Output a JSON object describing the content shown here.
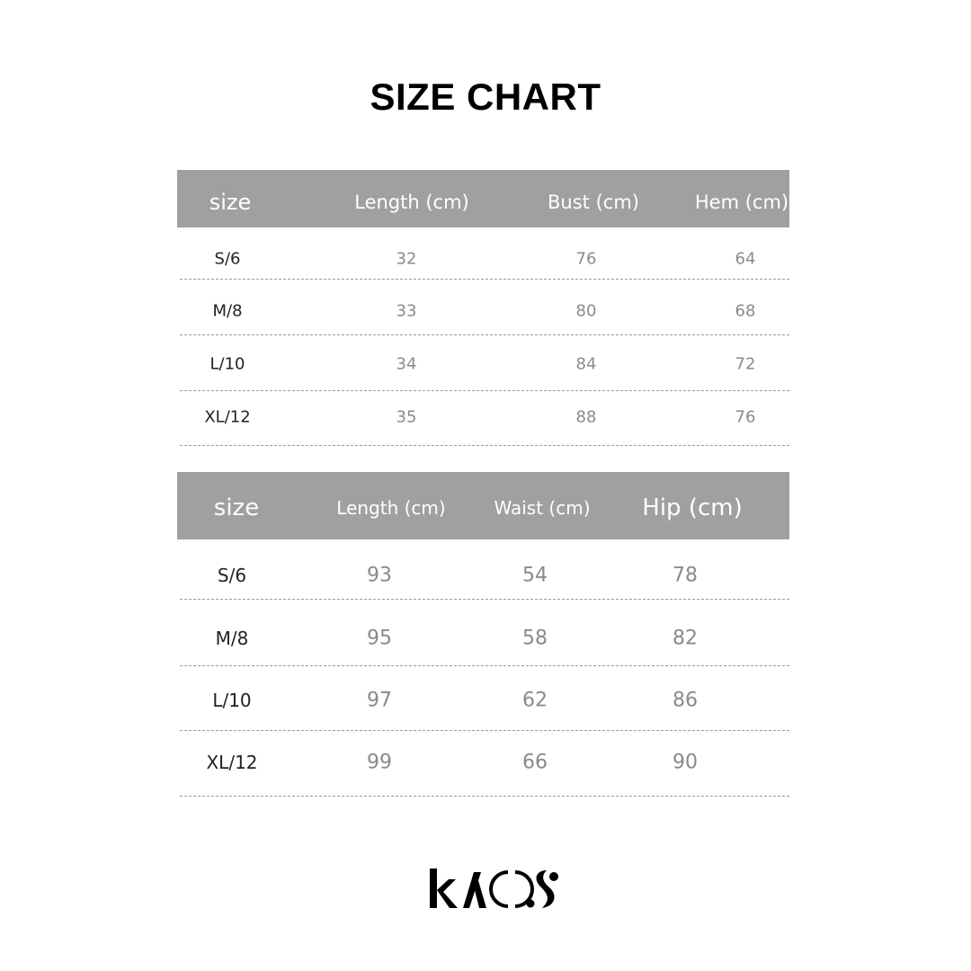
{
  "title": "SIZE CHART",
  "tables": [
    {
      "headers": [
        "size",
        "Length (cm)",
        "Bust (cm)",
        "Hem (cm)"
      ],
      "rows": [
        [
          "S/6",
          "32",
          "76",
          "64"
        ],
        [
          "M/8",
          "33",
          "80",
          "68"
        ],
        [
          "L/10",
          "34",
          "84",
          "72"
        ],
        [
          "XL/12",
          "35",
          "88",
          "76"
        ]
      ]
    },
    {
      "headers": [
        "size",
        "Length (cm)",
        "Waist (cm)",
        "Hip (cm)"
      ],
      "rows": [
        [
          "S/6",
          "93",
          "54",
          "78"
        ],
        [
          "M/8",
          "95",
          "58",
          "82"
        ],
        [
          "L/10",
          "97",
          "62",
          "86"
        ],
        [
          "XL/12",
          "99",
          "66",
          "90"
        ]
      ]
    }
  ],
  "logo": "KAOS",
  "colors": {
    "header_bg": "#a0a0a0",
    "header_text": "#ffffff",
    "value_text": "#8a8a8a"
  }
}
